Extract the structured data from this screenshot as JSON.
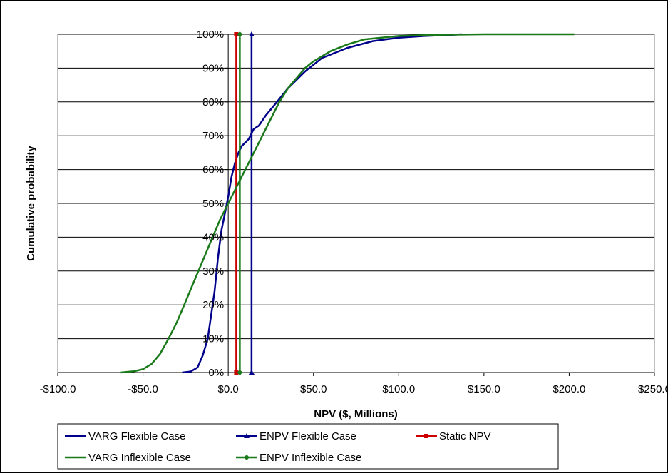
{
  "chart_data": {
    "type": "line",
    "xlabel": "NPV ($, Millions)",
    "ylabel": "Cumulative probability",
    "xlim": [
      -100,
      250
    ],
    "ylim": [
      0,
      1
    ],
    "x_ticks": [
      -100,
      -50,
      0,
      50,
      100,
      150,
      200,
      250
    ],
    "x_tick_labels": [
      "-$100.0",
      "-$50.0",
      "$0.0",
      "$50.0",
      "$100.0",
      "$150.0",
      "$200.0",
      "$250.0"
    ],
    "y_ticks": [
      0,
      0.1,
      0.2,
      0.3,
      0.4,
      0.5,
      0.6,
      0.7,
      0.8,
      0.9,
      1.0
    ],
    "y_tick_labels": [
      "0%",
      "10%",
      "20%",
      "30%",
      "40%",
      "50%",
      "60%",
      "70%",
      "80%",
      "90%",
      "100%"
    ],
    "grid": "horizontal",
    "legend_position": "bottom",
    "series": [
      {
        "name": "VARG Flexible Case",
        "color": "#00008b",
        "marker": "none",
        "x": [
          -27,
          -22,
          -18,
          -15,
          -12,
          -10,
          -8,
          -6,
          -4,
          -2,
          0,
          2,
          4,
          6,
          8,
          10,
          12,
          15,
          18,
          22,
          27,
          35,
          45,
          55,
          70,
          85,
          100,
          115,
          130,
          137
        ],
        "y": [
          0.0,
          0.003,
          0.015,
          0.05,
          0.1,
          0.17,
          0.24,
          0.34,
          0.42,
          0.47,
          0.52,
          0.58,
          0.62,
          0.65,
          0.67,
          0.68,
          0.69,
          0.72,
          0.73,
          0.76,
          0.79,
          0.84,
          0.89,
          0.93,
          0.96,
          0.98,
          0.99,
          0.995,
          0.998,
          1.0
        ]
      },
      {
        "name": "ENPV Flexible Case",
        "color": "#00008b",
        "marker": "triangle",
        "x": [
          13.7,
          13.7
        ],
        "y": [
          0,
          1
        ]
      },
      {
        "name": "Static NPV",
        "color": "#cc0000",
        "marker": "square",
        "x": [
          4.7,
          4.7
        ],
        "y": [
          0,
          1
        ]
      },
      {
        "name": "VARG Inflexible Case",
        "color": "#1a7a1a",
        "marker": "none",
        "x": [
          -63,
          -55,
          -50,
          -45,
          -40,
          -35,
          -30,
          -25,
          -20,
          -15,
          -10,
          -5,
          0,
          5,
          10,
          15,
          20,
          25,
          30,
          35,
          40,
          45,
          50,
          60,
          70,
          80,
          90,
          100,
          120,
          150,
          180,
          203
        ],
        "y": [
          0.0,
          0.004,
          0.01,
          0.025,
          0.055,
          0.1,
          0.15,
          0.21,
          0.27,
          0.33,
          0.39,
          0.45,
          0.5,
          0.55,
          0.6,
          0.65,
          0.7,
          0.75,
          0.8,
          0.84,
          0.87,
          0.9,
          0.92,
          0.95,
          0.97,
          0.985,
          0.99,
          0.995,
          0.998,
          1.0,
          1.0,
          1.0
        ]
      },
      {
        "name": "ENPV Inflexible Case",
        "color": "#1a7a1a",
        "marker": "diamond",
        "x": [
          6.8,
          6.8
        ],
        "y": [
          0,
          1
        ]
      }
    ]
  }
}
